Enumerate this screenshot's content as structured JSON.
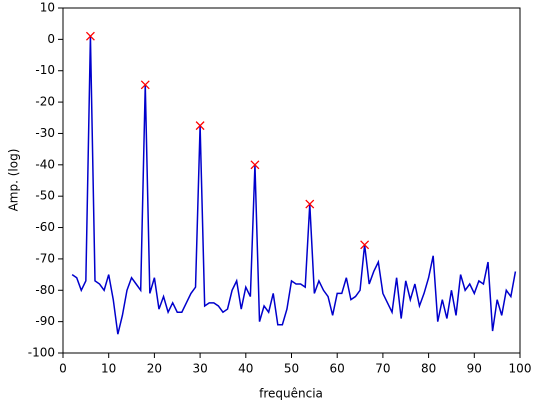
{
  "chart_data": {
    "type": "line",
    "xlabel": "frequência",
    "ylabel": "Amp. (log)",
    "xlim": [
      0,
      100
    ],
    "xticks": [
      0,
      10,
      20,
      30,
      40,
      50,
      60,
      70,
      80,
      90,
      100
    ],
    "ylim": [
      -100,
      10
    ],
    "yticks": [
      -100,
      -90,
      -80,
      -70,
      -60,
      -50,
      -40,
      -30,
      -20,
      -10,
      0,
      10
    ],
    "grid": false,
    "series": [
      {
        "color": "#0000cc",
        "x": [
          2,
          3,
          4,
          5,
          6,
          7,
          8,
          9,
          10,
          11,
          12,
          13,
          14,
          15,
          16,
          17,
          18,
          19,
          20,
          21,
          22,
          23,
          24,
          25,
          26,
          27,
          28,
          29,
          30,
          31,
          32,
          33,
          34,
          35,
          36,
          37,
          38,
          39,
          40,
          41,
          42,
          43,
          44,
          45,
          46,
          47,
          48,
          49,
          50,
          51,
          52,
          53,
          54,
          55,
          56,
          57,
          58,
          59,
          60,
          61,
          62,
          63,
          64,
          65,
          66,
          67,
          68,
          69,
          70,
          71,
          72,
          73,
          74,
          75,
          76,
          77,
          78,
          79,
          80,
          81,
          82,
          83,
          84,
          85,
          86,
          87,
          88,
          89,
          90,
          91,
          92,
          93,
          94,
          95,
          96,
          97,
          98,
          99
        ],
        "values": [
          -75,
          -76,
          -80,
          -77,
          1,
          -77,
          -78,
          -80,
          -75,
          -83,
          -94,
          -88,
          -80,
          -76,
          -78,
          -80,
          -14.5,
          -81,
          -76,
          -86,
          -82,
          -87,
          -84,
          -87,
          -87,
          -84,
          -81,
          -79,
          -27.5,
          -85,
          -84,
          -84,
          -85,
          -87,
          -86,
          -80,
          -77,
          -86,
          -79,
          -82,
          -40,
          -90,
          -85,
          -87,
          -81,
          -91,
          -91,
          -86,
          -77,
          -78,
          -78,
          -79,
          -52.5,
          -81,
          -77,
          -80,
          -82,
          -88,
          -81,
          -81,
          -76,
          -83,
          -82,
          -80,
          -65.5,
          -78,
          -74,
          -71,
          -81,
          -84,
          -87,
          -76,
          -89,
          -77,
          -83,
          -78,
          -85,
          -81,
          -76,
          -69,
          -90,
          -83,
          -89,
          -80,
          -88,
          -75,
          -80,
          -78,
          -81,
          -77,
          -78,
          -71,
          -93,
          -83,
          -88,
          -80,
          -82,
          -74
        ]
      },
      {
        "color": "#ff0000",
        "marker": "x",
        "x": [
          6,
          18,
          30,
          42,
          54,
          66
        ],
        "values": [
          1,
          -14.5,
          -27.5,
          -40,
          -52.5,
          -65.5
        ]
      }
    ]
  }
}
